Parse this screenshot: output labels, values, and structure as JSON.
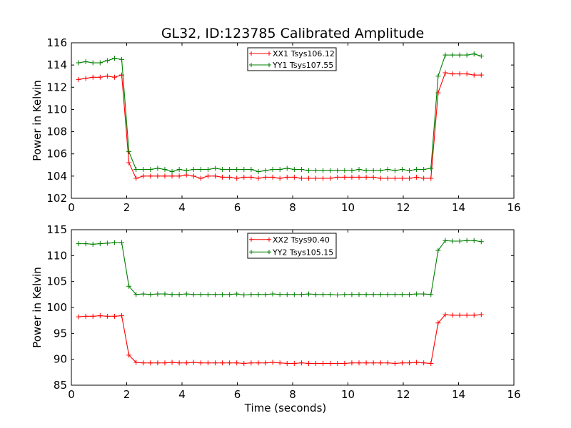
{
  "figure": {
    "title": "GL32, ID:123785 Calibrated Amplitude"
  },
  "colors": {
    "xx": "#ff0000",
    "yy": "#008000"
  },
  "chart_data": [
    {
      "type": "line",
      "title": "GL32, ID:123785 Calibrated Amplitude",
      "xlabel": "",
      "ylabel": "Power in Kelvin",
      "xlim": [
        0,
        16
      ],
      "ylim": [
        102,
        116
      ],
      "xticks": [
        0,
        2,
        4,
        6,
        8,
        10,
        12,
        14,
        16
      ],
      "yticks": [
        102,
        104,
        106,
        108,
        110,
        112,
        114,
        116
      ],
      "grid": false,
      "legend_position": "top-center",
      "x": [
        0.26,
        0.52,
        0.78,
        1.04,
        1.3,
        1.56,
        1.82,
        2.08,
        2.34,
        2.6,
        2.86,
        3.12,
        3.38,
        3.64,
        3.9,
        4.16,
        4.42,
        4.68,
        4.94,
        5.2,
        5.46,
        5.72,
        5.98,
        6.24,
        6.5,
        6.76,
        7.02,
        7.28,
        7.54,
        7.8,
        8.06,
        8.32,
        8.58,
        8.84,
        9.1,
        9.36,
        9.62,
        9.88,
        10.14,
        10.4,
        10.66,
        10.92,
        11.18,
        11.44,
        11.7,
        11.96,
        12.22,
        12.48,
        12.74,
        13.0,
        13.26,
        13.52,
        13.78,
        14.04,
        14.3,
        14.56,
        14.82
      ],
      "series": [
        {
          "name": "XX1 Tsys106.12",
          "color": "#ff0000",
          "values": [
            112.7,
            112.8,
            112.9,
            112.9,
            113.0,
            112.9,
            113.1,
            105.2,
            103.8,
            104.0,
            104.0,
            104.0,
            104.0,
            104.0,
            104.0,
            104.1,
            104.0,
            103.8,
            104.0,
            104.0,
            103.9,
            103.9,
            103.8,
            103.9,
            103.9,
            103.8,
            103.9,
            103.9,
            103.8,
            103.9,
            103.9,
            103.8,
            103.8,
            103.8,
            103.8,
            103.8,
            103.9,
            103.9,
            103.9,
            103.9,
            103.9,
            103.9,
            103.8,
            103.8,
            103.8,
            103.8,
            103.8,
            103.9,
            103.8,
            103.8,
            111.5,
            113.3,
            113.2,
            113.2,
            113.2,
            113.1,
            113.1
          ]
        },
        {
          "name": "YY1 Tsys107.55",
          "color": "#008000",
          "values": [
            114.2,
            114.3,
            114.2,
            114.2,
            114.4,
            114.6,
            114.5,
            106.2,
            104.6,
            104.6,
            104.6,
            104.7,
            104.6,
            104.4,
            104.6,
            104.5,
            104.6,
            104.6,
            104.6,
            104.7,
            104.6,
            104.6,
            104.6,
            104.6,
            104.6,
            104.4,
            104.5,
            104.6,
            104.6,
            104.7,
            104.6,
            104.6,
            104.5,
            104.5,
            104.5,
            104.5,
            104.5,
            104.5,
            104.5,
            104.6,
            104.5,
            104.5,
            104.5,
            104.6,
            104.5,
            104.6,
            104.5,
            104.6,
            104.6,
            104.7,
            113.0,
            114.9,
            114.9,
            114.9,
            114.9,
            115.0,
            114.8
          ]
        }
      ]
    },
    {
      "type": "line",
      "title": "",
      "xlabel": "Time (seconds)",
      "ylabel": "Power in Kelvin",
      "xlim": [
        0,
        16
      ],
      "ylim": [
        85,
        115
      ],
      "xticks": [
        0,
        2,
        4,
        6,
        8,
        10,
        12,
        14,
        16
      ],
      "yticks": [
        85,
        90,
        95,
        100,
        105,
        110,
        115
      ],
      "grid": false,
      "legend_position": "top-center",
      "x": [
        0.26,
        0.52,
        0.78,
        1.04,
        1.3,
        1.56,
        1.82,
        2.08,
        2.34,
        2.6,
        2.86,
        3.12,
        3.38,
        3.64,
        3.9,
        4.16,
        4.42,
        4.68,
        4.94,
        5.2,
        5.46,
        5.72,
        5.98,
        6.24,
        6.5,
        6.76,
        7.02,
        7.28,
        7.54,
        7.8,
        8.06,
        8.32,
        8.58,
        8.84,
        9.1,
        9.36,
        9.62,
        9.88,
        10.14,
        10.4,
        10.66,
        10.92,
        11.18,
        11.44,
        11.7,
        11.96,
        12.22,
        12.48,
        12.74,
        13.0,
        13.26,
        13.52,
        13.78,
        14.04,
        14.3,
        14.56,
        14.82
      ],
      "series": [
        {
          "name": "XX2 Tsys90.40",
          "color": "#ff0000",
          "values": [
            98.2,
            98.3,
            98.3,
            98.4,
            98.3,
            98.3,
            98.4,
            90.8,
            89.4,
            89.3,
            89.3,
            89.3,
            89.3,
            89.4,
            89.3,
            89.3,
            89.4,
            89.3,
            89.3,
            89.3,
            89.3,
            89.3,
            89.3,
            89.2,
            89.3,
            89.3,
            89.3,
            89.4,
            89.3,
            89.2,
            89.2,
            89.3,
            89.2,
            89.2,
            89.2,
            89.2,
            89.2,
            89.2,
            89.3,
            89.3,
            89.3,
            89.3,
            89.3,
            89.3,
            89.2,
            89.3,
            89.3,
            89.4,
            89.3,
            89.2,
            97.0,
            98.6,
            98.5,
            98.5,
            98.5,
            98.5,
            98.6
          ]
        },
        {
          "name": "YY2 Tsys105.15",
          "color": "#008000",
          "values": [
            112.3,
            112.3,
            112.2,
            112.3,
            112.4,
            112.5,
            112.5,
            104.1,
            102.5,
            102.6,
            102.5,
            102.6,
            102.6,
            102.5,
            102.5,
            102.6,
            102.5,
            102.5,
            102.5,
            102.5,
            102.5,
            102.5,
            102.6,
            102.4,
            102.5,
            102.5,
            102.5,
            102.6,
            102.5,
            102.5,
            102.5,
            102.5,
            102.6,
            102.5,
            102.5,
            102.5,
            102.4,
            102.5,
            102.5,
            102.5,
            102.5,
            102.5,
            102.5,
            102.5,
            102.5,
            102.5,
            102.5,
            102.6,
            102.6,
            102.5,
            111.0,
            112.9,
            112.8,
            112.8,
            112.9,
            112.9,
            112.7
          ]
        }
      ]
    }
  ]
}
